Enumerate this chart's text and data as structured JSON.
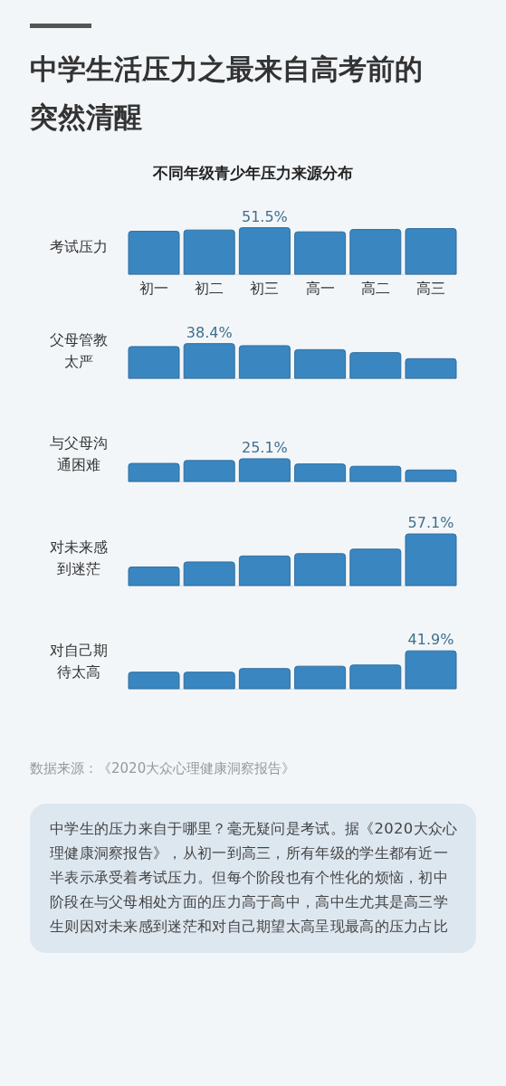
{
  "chart_data": [
    {
      "type": "bar",
      "title": "中学生活压力之最来自高考前的突然清醒",
      "subtitle": "不同年级青少年压力来源分布",
      "ylabel": "考试压力",
      "categories": [
        "初一",
        "初二",
        "初三",
        "高一",
        "高二",
        "高三"
      ],
      "color": "#3a86c0",
      "tick_labels": "x",
      "values": [
        47.5,
        48.9,
        51.5,
        46.9,
        49.5,
        50.5
      ],
      "value_labels": [
        null,
        null,
        "51.5%",
        null,
        null,
        null
      ]
    },
    {
      "type": "bar",
      "ylabel": "父母管教太严",
      "categories": [
        null,
        null,
        null,
        null,
        null,
        null
      ],
      "color": "#3a86c0",
      "tick_labels": false,
      "values": [
        35.1,
        38.4,
        36.1,
        31.7,
        28.4,
        21.7
      ],
      "value_labels": [
        null,
        "38.4%",
        null,
        null,
        null,
        null
      ]
    },
    {
      "type": "bar",
      "ylabel": "与父母沟通困难",
      "categories": [
        null,
        null,
        null,
        null,
        null,
        null
      ],
      "color": "#3a86c0",
      "tick_labels": false,
      "values": [
        20.0,
        23.2,
        25.1,
        19.4,
        16.8,
        12.7
      ],
      "value_labels": [
        null,
        null,
        "25.1%",
        null,
        null,
        null
      ]
    },
    {
      "type": "bar",
      "ylabel": "对未来感到迷茫",
      "categories": [
        null,
        null,
        null,
        null,
        null,
        null
      ],
      "color": "#3a86c0",
      "tick_labels": false,
      "values": [
        20.5,
        26.1,
        32.7,
        35.3,
        40.3,
        57.1
      ],
      "value_labels": [
        null,
        null,
        null,
        null,
        null,
        "57.1%"
      ]
    },
    {
      "type": "bar",
      "ylabel": "对自己期待太高",
      "categories": [
        null,
        null,
        null,
        null,
        null,
        null
      ],
      "color": "#3a86c0",
      "tick_labels": false,
      "values": [
        18.3,
        18.3,
        22.3,
        24.9,
        26.2,
        41.9
      ],
      "value_labels": [
        null,
        null,
        null,
        null,
        null,
        "41.9%"
      ],
      "annotations": [
        "数据来源：《2020大众心理健康洞察报告》",
        "中学生的压力来自于哪里？毫无疑问是考试。据《2020大众心理健康洞察报告》，从初一到高三，所有年级的学生都有近一半表示承受着考试压力。但每个阶段也有个性化的烦恼，初中阶段在与父母相处方面的压力高于高中，高中生尤其是高三学生则因对未来感到迷茫和对自己期望太高呈现最高的压力占比"
      ]
    }
  ]
}
